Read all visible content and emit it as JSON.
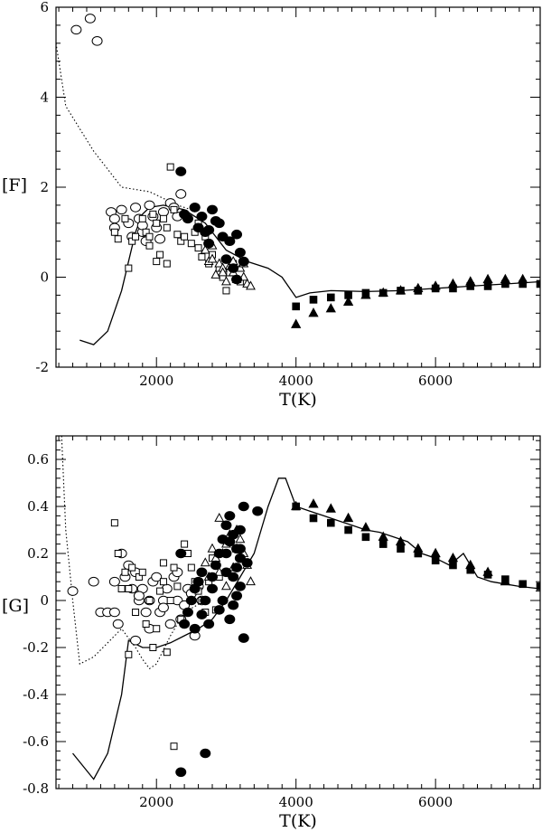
{
  "chart_data": [
    {
      "type": "scatter",
      "title": "",
      "xlabel": "T(K)",
      "ylabel": "[F]",
      "xlim": [
        560,
        7500
      ],
      "ylim": [
        -2,
        6
      ],
      "xticks": [
        2000,
        4000,
        6000
      ],
      "yticks": [
        -2,
        0,
        2,
        4,
        6
      ],
      "lines": [
        {
          "name": "model solid",
          "style": "solid",
          "x": [
            900,
            1100,
            1300,
            1500,
            1700,
            1800,
            1900,
            2100,
            2400,
            2700,
            3000,
            3300,
            3600,
            3800,
            4000,
            4200,
            4500,
            5000,
            5500,
            6000,
            6500,
            7000,
            7500
          ],
          "y": [
            -1.4,
            -1.5,
            -1.2,
            -0.3,
            1.0,
            1.4,
            1.55,
            1.6,
            1.5,
            1.2,
            0.6,
            0.35,
            0.2,
            0.0,
            -0.45,
            -0.35,
            -0.3,
            -0.32,
            -0.3,
            -0.25,
            -0.2,
            -0.15,
            -0.1
          ]
        },
        {
          "name": "model dotted",
          "style": "dotted",
          "x": [
            560,
            700,
            900,
            1100,
            1300,
            1500,
            1700,
            1900,
            2100,
            2300,
            2500
          ],
          "y": [
            5.2,
            3.8,
            3.3,
            2.8,
            2.4,
            2.0,
            1.95,
            1.9,
            1.75,
            1.6,
            1.5
          ]
        }
      ],
      "series": [
        {
          "name": "open circles",
          "marker": "open-circle",
          "x": [
            850,
            1050,
            1150,
            1350,
            1400,
            1500,
            1600,
            1700,
            1750,
            1800,
            1850,
            1900,
            1950,
            2000,
            2050,
            2100,
            2200,
            2250,
            2300,
            2350,
            1400,
            1650,
            1800
          ],
          "y": [
            5.5,
            5.75,
            5.25,
            1.45,
            1.3,
            1.5,
            1.2,
            1.55,
            1.3,
            1.0,
            0.8,
            1.6,
            1.35,
            1.1,
            0.85,
            1.45,
            1.65,
            1.55,
            1.35,
            1.85,
            1.1,
            0.9,
            1.15
          ]
        },
        {
          "name": "open squares",
          "marker": "open-square",
          "x": [
            1400,
            1450,
            1600,
            1650,
            1700,
            1800,
            1850,
            1900,
            1950,
            2000,
            2050,
            2100,
            2150,
            2200,
            2250,
            2300,
            2350,
            2400,
            2450,
            2500,
            2550,
            2600,
            2650,
            2700,
            2750,
            2800,
            2900,
            2950,
            3000,
            3050,
            3100,
            1550,
            1900,
            2000,
            2150,
            2600,
            3200
          ],
          "y": [
            1.0,
            0.85,
            0.2,
            0.8,
            0.9,
            1.3,
            1.0,
            0.9,
            1.4,
            1.2,
            0.5,
            1.3,
            1.1,
            2.45,
            1.5,
            0.95,
            0.8,
            0.9,
            1.3,
            0.75,
            1.0,
            0.65,
            0.45,
            0.9,
            0.3,
            0.5,
            0.2,
            0.0,
            -0.3,
            0.1,
            0.3,
            1.3,
            0.7,
            0.35,
            0.3,
            1.2,
            -0.1
          ]
        },
        {
          "name": "open triangles",
          "marker": "open-triangle",
          "x": [
            2700,
            2750,
            2800,
            2850,
            2900,
            2950,
            3000,
            3050,
            3100,
            3150,
            3200,
            3250,
            3300,
            3350,
            2800,
            2950,
            3100,
            3250
          ],
          "y": [
            0.6,
            0.35,
            0.4,
            0.05,
            0.3,
            0.2,
            -0.1,
            0.25,
            0.1,
            -0.05,
            0.2,
            0.0,
            -0.15,
            -0.2,
            0.7,
            0.1,
            0.35,
            0.3
          ]
        },
        {
          "name": "filled circles",
          "marker": "filled-circle",
          "x": [
            2350,
            2400,
            2450,
            2550,
            2600,
            2650,
            2700,
            2750,
            2800,
            2850,
            2900,
            2950,
            3000,
            3050,
            3100,
            3150,
            3200,
            3250,
            3150,
            2750,
            2550
          ],
          "y": [
            2.35,
            1.4,
            1.3,
            1.55,
            1.1,
            1.35,
            1.0,
            0.75,
            1.5,
            1.25,
            1.2,
            0.9,
            0.4,
            0.8,
            0.2,
            -0.05,
            0.55,
            0.35,
            0.95,
            1.05,
            1.55
          ]
        },
        {
          "name": "filled squares",
          "marker": "filled-square",
          "x": [
            4000,
            4250,
            4500,
            4750,
            5000,
            5250,
            5500,
            5750,
            6000,
            6250,
            6500,
            6750,
            7000,
            7250,
            7500
          ],
          "y": [
            -0.65,
            -0.5,
            -0.45,
            -0.4,
            -0.35,
            -0.35,
            -0.3,
            -0.3,
            -0.25,
            -0.25,
            -0.2,
            -0.2,
            -0.15,
            -0.15,
            -0.15
          ]
        },
        {
          "name": "filled triangles",
          "marker": "filled-triangle",
          "x": [
            4000,
            4250,
            4500,
            4750,
            5000,
            5250,
            5500,
            5750,
            6000,
            6250,
            6500,
            6750,
            7000,
            7250
          ],
          "y": [
            -1.05,
            -0.8,
            -0.7,
            -0.55,
            -0.4,
            -0.35,
            -0.3,
            -0.25,
            -0.2,
            -0.15,
            -0.1,
            -0.05,
            -0.05,
            -0.05
          ]
        }
      ]
    },
    {
      "type": "scatter",
      "title": "",
      "xlabel": "T(K)",
      "ylabel": "[G]",
      "xlim": [
        560,
        7500
      ],
      "ylim": [
        -0.8,
        0.7
      ],
      "xticks": [
        2000,
        4000,
        6000
      ],
      "yticks": [
        -0.8,
        -0.6,
        -0.4,
        -0.2,
        0,
        0.2,
        0.4,
        0.6
      ],
      "lines": [
        {
          "name": "model solid",
          "style": "solid",
          "x": [
            800,
            1100,
            1300,
            1500,
            1600,
            1800,
            2000,
            2200,
            2400,
            2600,
            2800,
            3000,
            3200,
            3400,
            3600,
            3750,
            3850,
            4000,
            4200,
            4400,
            4600,
            4800,
            5000,
            5200,
            5400,
            5600,
            5800,
            6000,
            6200,
            6400,
            6600,
            6800,
            7000,
            7200,
            7500
          ],
          "y": [
            -0.65,
            -0.76,
            -0.65,
            -0.4,
            -0.17,
            -0.2,
            -0.2,
            -0.18,
            -0.15,
            -0.12,
            -0.08,
            0.0,
            0.1,
            0.2,
            0.4,
            0.52,
            0.52,
            0.4,
            0.38,
            0.36,
            0.34,
            0.32,
            0.3,
            0.29,
            0.27,
            0.25,
            0.2,
            0.18,
            0.15,
            0.2,
            0.1,
            0.08,
            0.07,
            0.06,
            0.05
          ]
        },
        {
          "name": "model dotted",
          "style": "dotted",
          "x": [
            640,
            700,
            800,
            900,
            1100,
            1300,
            1500,
            1700,
            1800,
            1900,
            2000,
            2200,
            2400,
            2700
          ],
          "y": [
            0.7,
            0.3,
            0.0,
            -0.27,
            -0.24,
            -0.18,
            -0.12,
            -0.2,
            -0.25,
            -0.29,
            -0.27,
            -0.15,
            -0.05,
            0.0
          ]
        }
      ],
      "series": [
        {
          "name": "open circles",
          "marker": "open-circle",
          "x": [
            800,
            1100,
            1200,
            1300,
            1400,
            1450,
            1500,
            1550,
            1600,
            1650,
            1700,
            1750,
            1800,
            1850,
            1900,
            1950,
            2000,
            2050,
            2100,
            2150,
            2200,
            2250,
            2300,
            2350,
            2400,
            2450,
            2500,
            2550,
            2600,
            2650,
            1400,
            1700,
            1900,
            2100,
            2300,
            1750
          ],
          "y": [
            0.04,
            0.08,
            -0.05,
            -0.05,
            -0.05,
            -0.1,
            0.2,
            0.1,
            0.15,
            0.05,
            0.12,
            0.0,
            0.05,
            -0.05,
            0.0,
            0.08,
            0.1,
            -0.05,
            0.0,
            0.05,
            -0.1,
            0.1,
            0.0,
            -0.08,
            -0.02,
            0.05,
            0.03,
            -0.15,
            0.06,
            0.0,
            0.08,
            -0.17,
            -0.12,
            -0.03,
            0.12,
            0.02
          ]
        },
        {
          "name": "open squares",
          "marker": "open-square",
          "x": [
            1400,
            1450,
            1500,
            1550,
            1600,
            1650,
            1700,
            1750,
            1800,
            1850,
            1900,
            1950,
            2000,
            2050,
            2100,
            2150,
            2200,
            2250,
            2300,
            2350,
            2400,
            2450,
            2500,
            2550,
            2600,
            2650,
            2700,
            2750,
            2800,
            2850,
            2900,
            1600,
            2250,
            2100
          ],
          "y": [
            0.33,
            0.2,
            0.05,
            0.12,
            -0.23,
            0.14,
            -0.05,
            0.1,
            0.12,
            -0.1,
            0.0,
            -0.2,
            -0.12,
            0.04,
            0.08,
            -0.22,
            0.0,
            0.14,
            0.06,
            -0.08,
            0.24,
            0.2,
            0.14,
            0.08,
            0.04,
            0.0,
            -0.05,
            0.08,
            0.18,
            -0.04,
            0.1,
            0.05,
            -0.62,
            0.16
          ]
        },
        {
          "name": "open triangles",
          "marker": "open-triangle",
          "x": [
            2700,
            2750,
            2800,
            2850,
            2900,
            2950,
            3000,
            3050,
            3100,
            3150,
            3200,
            3250,
            3300,
            3350,
            2900,
            3000,
            3150
          ],
          "y": [
            0.16,
            0.1,
            0.22,
            0.18,
            0.35,
            0.2,
            0.24,
            0.28,
            0.14,
            0.3,
            0.26,
            0.2,
            0.15,
            0.08,
            0.12,
            0.06,
            0.22
          ]
        },
        {
          "name": "filled circles",
          "marker": "filled-circle",
          "x": [
            2350,
            2400,
            2450,
            2500,
            2550,
            2600,
            2650,
            2700,
            2750,
            2800,
            2850,
            2900,
            2950,
            3000,
            3050,
            3100,
            3150,
            3200,
            3250,
            3300,
            3450,
            3000,
            3100,
            3200,
            2350,
            2700,
            2900,
            3050,
            3150,
            3250,
            2800,
            3000,
            3200,
            2550,
            2650,
            2950,
            3100,
            3150,
            3050,
            3200
          ],
          "y": [
            0.2,
            -0.1,
            -0.05,
            0.0,
            -0.12,
            0.08,
            -0.06,
            0.0,
            -0.1,
            0.05,
            0.15,
            0.2,
            0.26,
            0.32,
            0.36,
            0.28,
            0.22,
            0.18,
            0.4,
            0.16,
            0.38,
            0.12,
            0.1,
            0.06,
            -0.73,
            -0.65,
            -0.04,
            -0.08,
            0.02,
            -0.16,
            0.1,
            0.2,
            0.3,
            0.05,
            0.12,
            0.0,
            -0.02,
            0.14,
            0.25,
            0.22
          ]
        },
        {
          "name": "filled squares",
          "marker": "filled-square",
          "x": [
            4000,
            4250,
            4500,
            4750,
            5000,
            5250,
            5500,
            5750,
            6000,
            6250,
            6500,
            6750,
            7000,
            7250,
            7500
          ],
          "y": [
            0.4,
            0.35,
            0.33,
            0.3,
            0.27,
            0.24,
            0.22,
            0.2,
            0.17,
            0.15,
            0.13,
            0.11,
            0.09,
            0.07,
            0.06
          ]
        },
        {
          "name": "filled triangles",
          "marker": "filled-triangle",
          "x": [
            4000,
            4250,
            4500,
            4750,
            5000,
            5250,
            5500,
            5750,
            6000,
            6250,
            6500,
            6750,
            7000
          ],
          "y": [
            0.4,
            0.41,
            0.39,
            0.35,
            0.31,
            0.27,
            0.25,
            0.22,
            0.2,
            0.18,
            0.15,
            0.12,
            0.08
          ]
        }
      ]
    }
  ]
}
